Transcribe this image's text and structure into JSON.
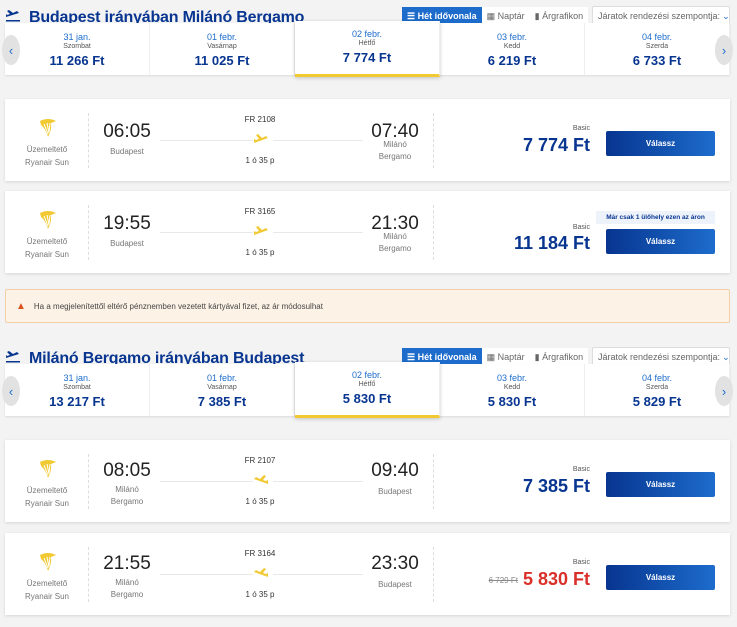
{
  "colors": {
    "brand": "#073590",
    "accent": "#1d6ccc",
    "selected_underline": "#f1c933",
    "discount": "#d9302a",
    "warning_bg": "#fdf2e6"
  },
  "view_options": [
    "Hét idővonala",
    "Naptár",
    "Árgrafikon"
  ],
  "sort_label": "Járatok rendezési szempontja:",
  "warning": "Ha a megjelenítettől eltérő pénznemben vezetett kártyával fizet, az ár módosulhat",
  "sections": [
    {
      "title": "Budapest irányában Milánó Bergamo",
      "days": [
        {
          "date": "31 jan.",
          "weekday": "Szombat",
          "price": "11 266 Ft"
        },
        {
          "date": "01 febr.",
          "weekday": "Vasárnap",
          "price": "11 025 Ft"
        },
        {
          "date": "02 febr.",
          "weekday": "Hétfő",
          "price": "7 774 Ft",
          "selected": true
        },
        {
          "date": "03 febr.",
          "weekday": "Kedd",
          "price": "6 219 Ft"
        },
        {
          "date": "04 febr.",
          "weekday": "Szerda",
          "price": "6 733 Ft"
        }
      ],
      "flights": [
        {
          "operator_label": "Üzemeltető",
          "operator": "Ryanair Sun",
          "dep_time": "06:05",
          "dep_city": "Budapest",
          "flight_no": "FR 2108",
          "duration": "1 ó 35 p",
          "arr_time": "07:40",
          "arr_city": "Milánó Bergamo",
          "fare": "Basic",
          "price": "7 774 Ft",
          "button": "Válassz"
        },
        {
          "operator_label": "Üzemeltető",
          "operator": "Ryanair Sun",
          "dep_time": "19:55",
          "dep_city": "Budapest",
          "flight_no": "FR 3165",
          "duration": "1 ó 35 p",
          "arr_time": "21:30",
          "arr_city": "Milánó Bergamo",
          "fare": "Basic",
          "price": "11 184 Ft",
          "badge": "Már csak 1 ülőhely ezen az áron",
          "button": "Válassz"
        }
      ]
    },
    {
      "title": "Milánó Bergamo irányában Budapest",
      "days": [
        {
          "date": "31 jan.",
          "weekday": "Szombat",
          "price": "13 217 Ft"
        },
        {
          "date": "01 febr.",
          "weekday": "Vasárnap",
          "price": "7 385 Ft"
        },
        {
          "date": "02 febr.",
          "weekday": "Hétfő",
          "price": "5 830 Ft",
          "selected": true
        },
        {
          "date": "03 febr.",
          "weekday": "Kedd",
          "price": "5 830 Ft"
        },
        {
          "date": "04 febr.",
          "weekday": "Szerda",
          "price": "5 829 Ft"
        }
      ],
      "flights": [
        {
          "operator_label": "Üzemeltető",
          "operator": "Ryanair Sun",
          "dep_time": "08:05",
          "dep_city": "Milánó Bergamo",
          "flight_no": "FR 2107",
          "duration": "1 ó 35 p",
          "arr_time": "09:40",
          "arr_city": "Budapest",
          "fare": "Basic",
          "price": "7 385 Ft",
          "button": "Válassz"
        },
        {
          "operator_label": "Üzemeltető",
          "operator": "Ryanair Sun",
          "dep_time": "21:55",
          "dep_city": "Milánó Bergamo",
          "flight_no": "FR 3164",
          "duration": "1 ó 35 p",
          "arr_time": "23:30",
          "arr_city": "Budapest",
          "fare": "Basic",
          "old_price": "6 729 Ft",
          "price": "5 830 Ft",
          "button": "Válassz"
        }
      ]
    }
  ]
}
